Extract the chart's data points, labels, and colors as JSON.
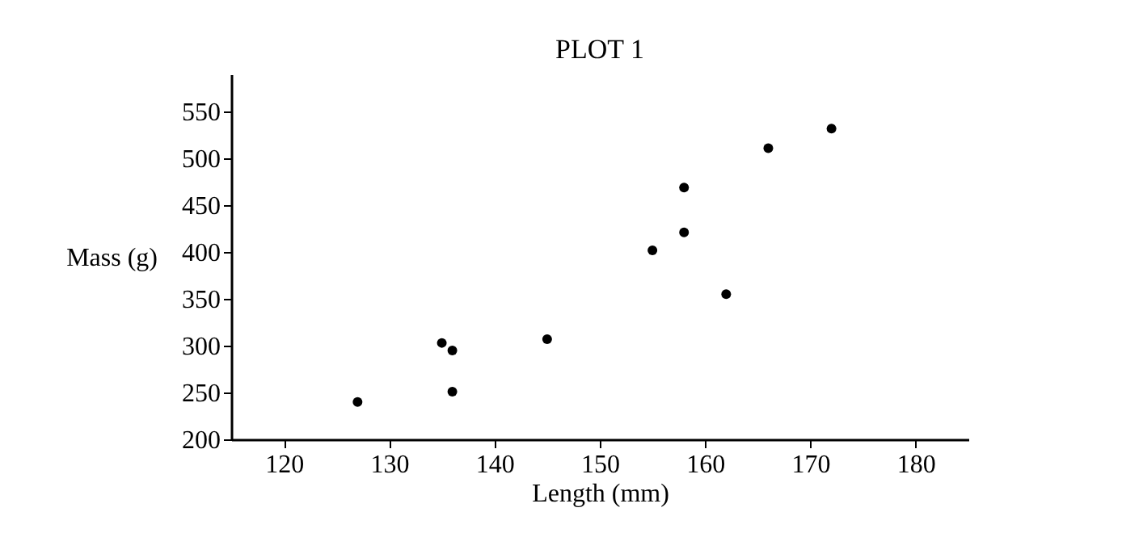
{
  "chart_data": {
    "type": "scatter",
    "title": "PLOT 1",
    "xlabel": "Length (mm)",
    "ylabel": "Mass (g)",
    "x": [
      127,
      135,
      136,
      136,
      145,
      155,
      158,
      158,
      162,
      166,
      172
    ],
    "values": [
      240,
      303,
      295,
      251,
      307,
      402,
      469,
      421,
      355,
      511,
      532
    ],
    "color": "#000000",
    "marker": "circle",
    "xlim": [
      115,
      185
    ],
    "xticks": [
      120,
      130,
      140,
      150,
      160,
      170,
      180
    ],
    "ylim": [
      200,
      590
    ],
    "yticks": [
      200,
      250,
      300,
      350,
      400,
      450,
      500,
      550
    ],
    "grid": false
  }
}
